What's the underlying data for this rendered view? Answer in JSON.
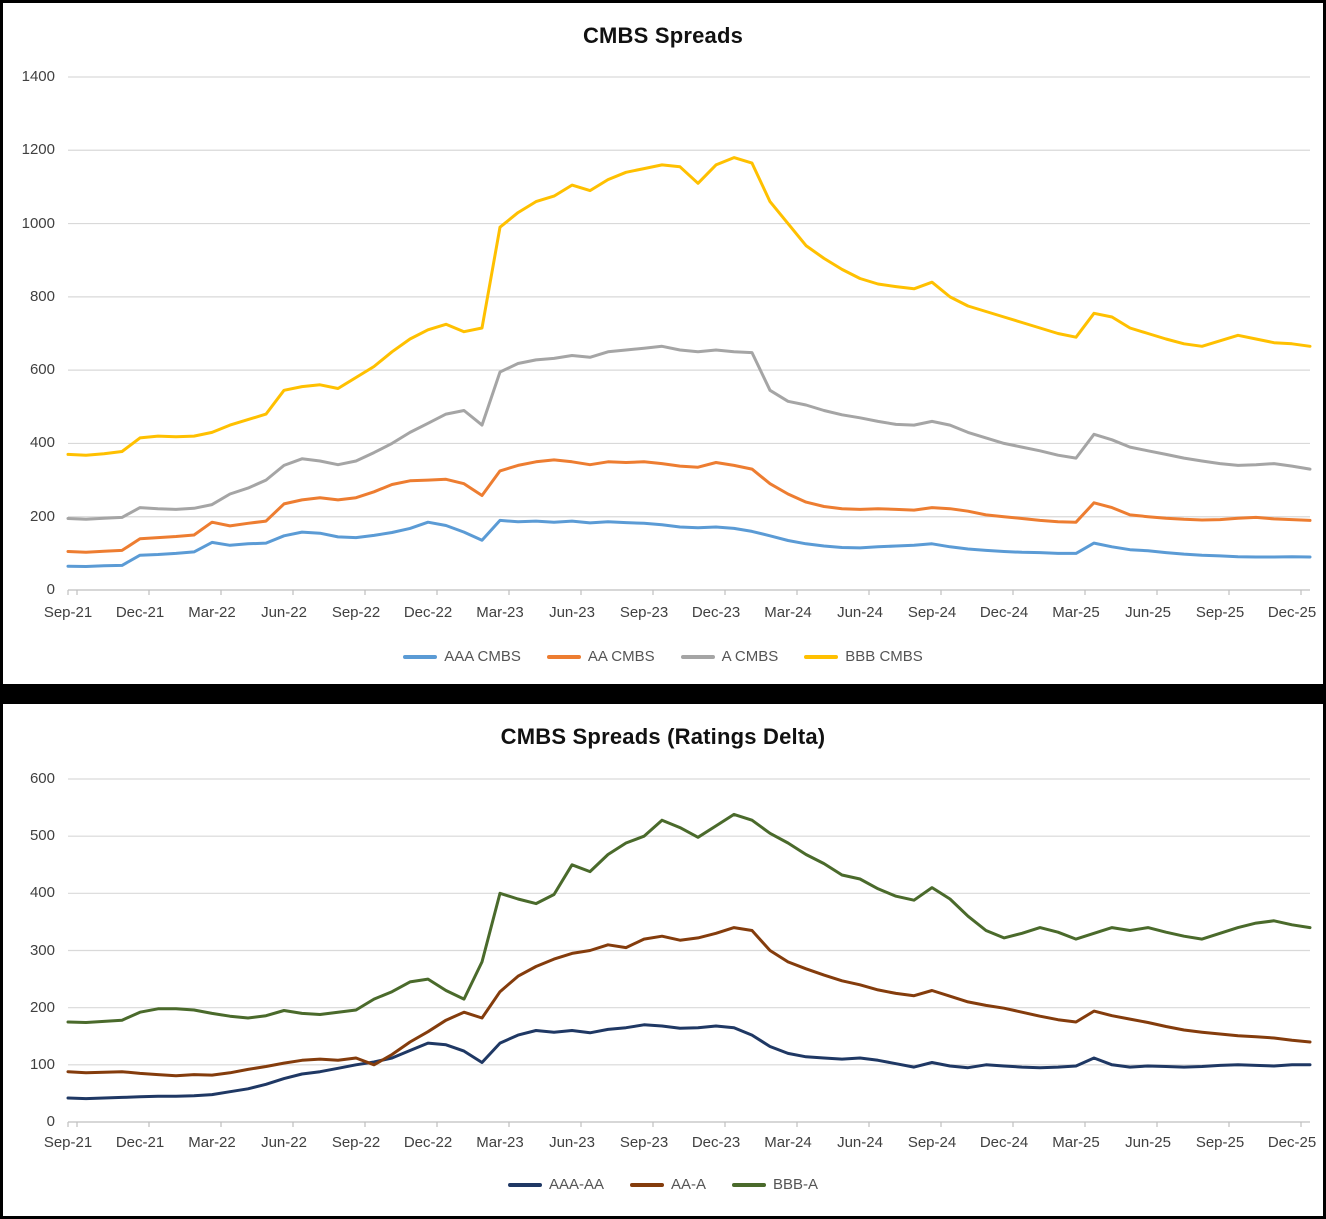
{
  "chart_data": [
    {
      "type": "line",
      "title": "CMBS Spreads",
      "xlabel": "",
      "ylabel": "",
      "ylim": [
        0,
        1400
      ],
      "y_ticks": [
        0,
        200,
        400,
        600,
        800,
        1000,
        1200,
        1400
      ],
      "grid": true,
      "legend_position": "bottom",
      "x_tick_labels": [
        "Sep-21",
        "Dec-21",
        "Mar-22",
        "Jun-22",
        "Sep-22",
        "Dec-22",
        "Mar-23",
        "Jun-23",
        "Sep-23",
        "Dec-23",
        "Mar-24",
        "Jun-24",
        "Sep-24",
        "Dec-24",
        "Mar-25",
        "Jun-25",
        "Sep-25",
        "Dec-25"
      ],
      "points_per_tick": 4,
      "series": [
        {
          "name": "AAA CMBS",
          "color": "#5B9BD5",
          "values": [
            65,
            64,
            66,
            67,
            95,
            97,
            100,
            104,
            130,
            122,
            126,
            128,
            148,
            158,
            155,
            145,
            143,
            149,
            157,
            168,
            185,
            176,
            158,
            136,
            190,
            186,
            188,
            185,
            188,
            183,
            186,
            184,
            182,
            178,
            172,
            170,
            172,
            168,
            160,
            148,
            135,
            126,
            120,
            116,
            115,
            118,
            120,
            122,
            126,
            118,
            112,
            108,
            105,
            103,
            102,
            100,
            100,
            128,
            118,
            110,
            107,
            102,
            98,
            95,
            93,
            91,
            90,
            90,
            91,
            90
          ]
        },
        {
          "name": "AA CMBS",
          "color": "#ED7D31",
          "values": [
            105,
            103,
            106,
            108,
            140,
            143,
            146,
            150,
            185,
            175,
            182,
            188,
            235,
            246,
            252,
            246,
            252,
            268,
            288,
            298,
            300,
            302,
            290,
            258,
            325,
            340,
            350,
            355,
            350,
            342,
            350,
            348,
            350,
            345,
            338,
            335,
            348,
            340,
            330,
            290,
            262,
            240,
            228,
            222,
            220,
            222,
            220,
            218,
            225,
            222,
            215,
            205,
            200,
            195,
            190,
            186,
            185,
            238,
            225,
            205,
            200,
            196,
            193,
            191,
            192,
            196,
            198,
            194,
            192,
            190
          ]
        },
        {
          "name": "A CMBS",
          "color": "#A5A5A5",
          "values": [
            195,
            193,
            196,
            198,
            225,
            222,
            220,
            223,
            233,
            262,
            278,
            300,
            340,
            358,
            352,
            342,
            352,
            375,
            400,
            430,
            455,
            480,
            490,
            450,
            595,
            618,
            628,
            632,
            640,
            635,
            650,
            655,
            660,
            665,
            655,
            650,
            655,
            650,
            648,
            545,
            515,
            505,
            490,
            478,
            470,
            460,
            452,
            450,
            460,
            450,
            430,
            415,
            400,
            390,
            380,
            368,
            360,
            425,
            410,
            390,
            380,
            370,
            360,
            352,
            345,
            340,
            342,
            345,
            338,
            330
          ]
        },
        {
          "name": "BBB CMBS",
          "color": "#FFC000",
          "values": [
            370,
            368,
            372,
            378,
            415,
            420,
            418,
            420,
            430,
            450,
            465,
            480,
            545,
            555,
            560,
            550,
            580,
            610,
            650,
            685,
            710,
            725,
            705,
            715,
            990,
            1030,
            1060,
            1075,
            1105,
            1090,
            1120,
            1140,
            1150,
            1160,
            1155,
            1110,
            1160,
            1180,
            1165,
            1060,
            1000,
            940,
            905,
            875,
            850,
            835,
            828,
            822,
            840,
            800,
            775,
            760,
            745,
            730,
            715,
            700,
            690,
            755,
            745,
            715,
            700,
            685,
            672,
            665,
            680,
            695,
            685,
            675,
            672,
            665
          ]
        }
      ]
    },
    {
      "type": "line",
      "title": "CMBS Spreads (Ratings Delta)",
      "xlabel": "",
      "ylabel": "",
      "ylim": [
        0,
        600
      ],
      "y_ticks": [
        0,
        100,
        200,
        300,
        400,
        500,
        600
      ],
      "grid": true,
      "legend_position": "bottom",
      "x_tick_labels": [
        "Sep-21",
        "Dec-21",
        "Mar-22",
        "Jun-22",
        "Sep-22",
        "Dec-22",
        "Mar-23",
        "Jun-23",
        "Sep-23",
        "Dec-23",
        "Mar-24",
        "Jun-24",
        "Sep-24",
        "Dec-24",
        "Mar-25",
        "Jun-25",
        "Sep-25",
        "Dec-25"
      ],
      "points_per_tick": 4,
      "series": [
        {
          "name": "AAA-AA",
          "color": "#1F3864",
          "values": [
            42,
            41,
            42,
            43,
            44,
            45,
            45,
            46,
            48,
            53,
            58,
            66,
            76,
            84,
            88,
            94,
            100,
            105,
            112,
            125,
            138,
            135,
            124,
            104,
            138,
            152,
            160,
            157,
            160,
            156,
            162,
            165,
            170,
            168,
            164,
            165,
            168,
            165,
            152,
            132,
            120,
            114,
            112,
            110,
            112,
            108,
            102,
            96,
            104,
            98,
            95,
            100,
            98,
            96,
            95,
            96,
            98,
            112,
            100,
            96,
            98,
            97,
            96,
            97,
            99,
            100,
            99,
            98,
            100,
            100
          ]
        },
        {
          "name": "AA-A",
          "color": "#843C0C",
          "values": [
            88,
            86,
            87,
            88,
            85,
            83,
            81,
            83,
            82,
            86,
            92,
            97,
            103,
            108,
            110,
            108,
            112,
            100,
            118,
            140,
            158,
            178,
            192,
            182,
            228,
            255,
            272,
            285,
            295,
            300,
            310,
            305,
            320,
            325,
            318,
            322,
            330,
            340,
            335,
            300,
            280,
            268,
            257,
            247,
            240,
            231,
            225,
            221,
            230,
            220,
            210,
            204,
            199,
            192,
            185,
            179,
            175,
            194,
            186,
            180,
            174,
            167,
            161,
            157,
            154,
            151,
            149,
            147,
            143,
            140
          ]
        },
        {
          "name": "BBB-A",
          "color": "#4A6A2B",
          "values": [
            175,
            174,
            176,
            178,
            192,
            198,
            198,
            196,
            190,
            185,
            182,
            186,
            195,
            190,
            188,
            192,
            196,
            215,
            228,
            245,
            250,
            230,
            215,
            280,
            400,
            390,
            382,
            398,
            450,
            438,
            468,
            488,
            500,
            528,
            515,
            498,
            518,
            538,
            528,
            505,
            488,
            468,
            452,
            432,
            425,
            408,
            395,
            388,
            410,
            390,
            360,
            335,
            322,
            330,
            340,
            332,
            320,
            330,
            340,
            335,
            340,
            332,
            325,
            320,
            330,
            340,
            348,
            352,
            345,
            340
          ]
        }
      ]
    }
  ]
}
